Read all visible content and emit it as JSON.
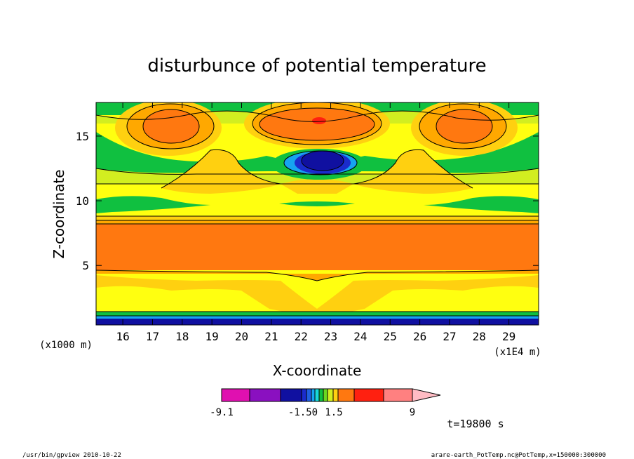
{
  "chart_data": {
    "type": "heatmap",
    "title": "disturbunce of potential temperature",
    "xlabel": "X-coordinate",
    "ylabel": "Z-coordinate",
    "x_unit": "(x1E4 m)",
    "y_unit": "(x1000 m)",
    "xlim": [
      15.1,
      30.0
    ],
    "ylim": [
      0.4,
      17.6
    ],
    "x_ticks": [
      "16",
      "17",
      "18",
      "19",
      "20",
      "21",
      "22",
      "23",
      "24",
      "25",
      "26",
      "27",
      "28",
      "29"
    ],
    "y_ticks": [
      "5",
      "10",
      "15"
    ],
    "colorbar": {
      "labels": [
        "-9.1",
        "-1.50",
        "1.5",
        "9"
      ],
      "colors": [
        "#e010b0",
        "#8a10c0",
        "#1010a0",
        "#1a2ccc",
        "#1f5fe0",
        "#16a4f0",
        "#18d8d8",
        "#10c040",
        "#6ad820",
        "#d2ee20",
        "#ffff10",
        "#ffd010",
        "#ffa800",
        "#ff7810",
        "#ff2010",
        "#ff8080",
        "#ffbcc4"
      ]
    },
    "time_label": "t=19800 s"
  },
  "footer": {
    "left": "/usr/bin/gpview   2010-10-22",
    "right": "arare-earth_PotTemp.nc@PotTemp,x=150000:300000"
  }
}
